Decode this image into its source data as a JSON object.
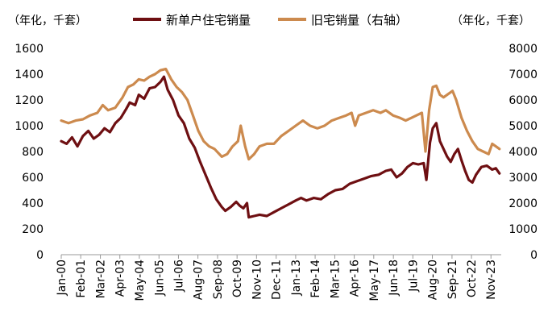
{
  "chart_data": {
    "type": "line",
    "title": "",
    "left_unit": "（年化，千套）",
    "right_unit": "（年化，千套）",
    "colors": {
      "new_home": "#6e0f12",
      "existing_home": "#cc8a4e",
      "axis": "#999999"
    },
    "y_left": {
      "lim": [
        0,
        1600
      ],
      "ticks": [
        0,
        200,
        400,
        600,
        800,
        1000,
        1200,
        1400,
        1600
      ]
    },
    "y_right": {
      "lim": [
        0,
        8000
      ],
      "ticks": [
        0,
        1000,
        2000,
        3000,
        4000,
        5000,
        6000,
        7000,
        8000
      ]
    },
    "x_range": [
      2000.0,
      2024.4
    ],
    "x_ticks": [
      {
        "label": "Jan-00",
        "t": 2000.0
      },
      {
        "label": "Feb-01",
        "t": 2001.08
      },
      {
        "label": "Mar-02",
        "t": 2002.17
      },
      {
        "label": "Apr-03",
        "t": 2003.25
      },
      {
        "label": "May-04",
        "t": 2004.33
      },
      {
        "label": "Jun-05",
        "t": 2005.42
      },
      {
        "label": "Jul-06",
        "t": 2006.5
      },
      {
        "label": "Aug-07",
        "t": 2007.58
      },
      {
        "label": "Sep-08",
        "t": 2008.67
      },
      {
        "label": "Oct-09",
        "t": 2009.75
      },
      {
        "label": "Nov-10",
        "t": 2010.83
      },
      {
        "label": "Dec-11",
        "t": 2011.92
      },
      {
        "label": "Jan-13",
        "t": 2013.0
      },
      {
        "label": "Feb-14",
        "t": 2014.08
      },
      {
        "label": "Mar-15",
        "t": 2015.17
      },
      {
        "label": "Apr-16",
        "t": 2016.25
      },
      {
        "label": "May-17",
        "t": 2017.33
      },
      {
        "label": "Jun-18",
        "t": 2018.42
      },
      {
        "label": "Jul-19",
        "t": 2019.5
      },
      {
        "label": "Aug-20",
        "t": 2020.58
      },
      {
        "label": "Sep-21",
        "t": 2021.67
      },
      {
        "label": "Oct-22",
        "t": 2022.75
      },
      {
        "label": "Nov-23",
        "t": 2023.83
      }
    ],
    "series": [
      {
        "name": "新单户住宅销量",
        "axis": "left",
        "points": [
          [
            2000.0,
            880
          ],
          [
            2000.3,
            860
          ],
          [
            2000.6,
            910
          ],
          [
            2000.9,
            840
          ],
          [
            2001.2,
            920
          ],
          [
            2001.5,
            960
          ],
          [
            2001.8,
            900
          ],
          [
            2002.1,
            930
          ],
          [
            2002.4,
            980
          ],
          [
            2002.7,
            950
          ],
          [
            2003.0,
            1020
          ],
          [
            2003.3,
            1060
          ],
          [
            2003.6,
            1130
          ],
          [
            2003.8,
            1180
          ],
          [
            2004.1,
            1160
          ],
          [
            2004.3,
            1240
          ],
          [
            2004.6,
            1210
          ],
          [
            2004.9,
            1290
          ],
          [
            2005.2,
            1300
          ],
          [
            2005.5,
            1340
          ],
          [
            2005.7,
            1380
          ],
          [
            2005.9,
            1280
          ],
          [
            2006.2,
            1200
          ],
          [
            2006.5,
            1080
          ],
          [
            2006.8,
            1020
          ],
          [
            2007.1,
            900
          ],
          [
            2007.4,
            830
          ],
          [
            2007.7,
            720
          ],
          [
            2008.0,
            620
          ],
          [
            2008.3,
            520
          ],
          [
            2008.6,
            430
          ],
          [
            2008.9,
            370
          ],
          [
            2009.1,
            340
          ],
          [
            2009.4,
            370
          ],
          [
            2009.7,
            410
          ],
          [
            2009.9,
            380
          ],
          [
            2010.1,
            360
          ],
          [
            2010.3,
            400
          ],
          [
            2010.4,
            290
          ],
          [
            2010.7,
            300
          ],
          [
            2011.0,
            310
          ],
          [
            2011.4,
            300
          ],
          [
            2011.8,
            330
          ],
          [
            2012.2,
            360
          ],
          [
            2012.6,
            390
          ],
          [
            2013.0,
            420
          ],
          [
            2013.3,
            440
          ],
          [
            2013.6,
            420
          ],
          [
            2014.0,
            440
          ],
          [
            2014.4,
            430
          ],
          [
            2014.8,
            470
          ],
          [
            2015.2,
            500
          ],
          [
            2015.6,
            510
          ],
          [
            2016.0,
            550
          ],
          [
            2016.4,
            570
          ],
          [
            2016.8,
            590
          ],
          [
            2017.2,
            610
          ],
          [
            2017.6,
            620
          ],
          [
            2018.0,
            650
          ],
          [
            2018.3,
            660
          ],
          [
            2018.6,
            600
          ],
          [
            2018.9,
            630
          ],
          [
            2019.2,
            680
          ],
          [
            2019.5,
            710
          ],
          [
            2019.8,
            700
          ],
          [
            2020.1,
            710
          ],
          [
            2020.25,
            580
          ],
          [
            2020.45,
            870
          ],
          [
            2020.6,
            980
          ],
          [
            2020.8,
            1020
          ],
          [
            2021.0,
            880
          ],
          [
            2021.2,
            820
          ],
          [
            2021.4,
            760
          ],
          [
            2021.6,
            720
          ],
          [
            2021.8,
            780
          ],
          [
            2022.0,
            820
          ],
          [
            2022.2,
            730
          ],
          [
            2022.4,
            650
          ],
          [
            2022.6,
            580
          ],
          [
            2022.8,
            560
          ],
          [
            2023.0,
            620
          ],
          [
            2023.3,
            680
          ],
          [
            2023.6,
            690
          ],
          [
            2023.9,
            660
          ],
          [
            2024.1,
            670
          ],
          [
            2024.3,
            630
          ]
        ]
      },
      {
        "name": "旧宅销量（右轴）",
        "axis": "right",
        "points": [
          [
            2000.0,
            5200
          ],
          [
            2000.4,
            5100
          ],
          [
            2000.8,
            5200
          ],
          [
            2001.2,
            5250
          ],
          [
            2001.6,
            5400
          ],
          [
            2002.0,
            5500
          ],
          [
            2002.3,
            5800
          ],
          [
            2002.6,
            5600
          ],
          [
            2003.0,
            5700
          ],
          [
            2003.4,
            6100
          ],
          [
            2003.7,
            6500
          ],
          [
            2004.0,
            6600
          ],
          [
            2004.3,
            6800
          ],
          [
            2004.6,
            6750
          ],
          [
            2004.9,
            6900
          ],
          [
            2005.2,
            7000
          ],
          [
            2005.5,
            7150
          ],
          [
            2005.8,
            7200
          ],
          [
            2006.1,
            6800
          ],
          [
            2006.4,
            6500
          ],
          [
            2006.7,
            6300
          ],
          [
            2007.0,
            6000
          ],
          [
            2007.3,
            5400
          ],
          [
            2007.6,
            4800
          ],
          [
            2007.9,
            4400
          ],
          [
            2008.2,
            4200
          ],
          [
            2008.5,
            4100
          ],
          [
            2008.9,
            3800
          ],
          [
            2009.2,
            3900
          ],
          [
            2009.5,
            4200
          ],
          [
            2009.8,
            4400
          ],
          [
            2009.95,
            5000
          ],
          [
            2010.2,
            4200
          ],
          [
            2010.4,
            3700
          ],
          [
            2010.7,
            3900
          ],
          [
            2011.0,
            4200
          ],
          [
            2011.4,
            4300
          ],
          [
            2011.8,
            4300
          ],
          [
            2012.2,
            4600
          ],
          [
            2012.6,
            4800
          ],
          [
            2013.0,
            5000
          ],
          [
            2013.4,
            5200
          ],
          [
            2013.8,
            5000
          ],
          [
            2014.2,
            4900
          ],
          [
            2014.6,
            5000
          ],
          [
            2015.0,
            5200
          ],
          [
            2015.4,
            5300
          ],
          [
            2015.8,
            5400
          ],
          [
            2016.1,
            5500
          ],
          [
            2016.3,
            5000
          ],
          [
            2016.5,
            5400
          ],
          [
            2016.9,
            5500
          ],
          [
            2017.3,
            5600
          ],
          [
            2017.7,
            5500
          ],
          [
            2018.0,
            5600
          ],
          [
            2018.4,
            5400
          ],
          [
            2018.8,
            5300
          ],
          [
            2019.1,
            5200
          ],
          [
            2019.4,
            5300
          ],
          [
            2019.7,
            5400
          ],
          [
            2020.0,
            5500
          ],
          [
            2020.2,
            4000
          ],
          [
            2020.4,
            5600
          ],
          [
            2020.6,
            6500
          ],
          [
            2020.8,
            6550
          ],
          [
            2021.0,
            6200
          ],
          [
            2021.2,
            6100
          ],
          [
            2021.4,
            6200
          ],
          [
            2021.7,
            6350
          ],
          [
            2021.9,
            6000
          ],
          [
            2022.2,
            5300
          ],
          [
            2022.5,
            4800
          ],
          [
            2022.8,
            4400
          ],
          [
            2023.1,
            4100
          ],
          [
            2023.4,
            4000
          ],
          [
            2023.7,
            3900
          ],
          [
            2023.9,
            4300
          ],
          [
            2024.1,
            4200
          ],
          [
            2024.3,
            4100
          ]
        ]
      }
    ]
  }
}
